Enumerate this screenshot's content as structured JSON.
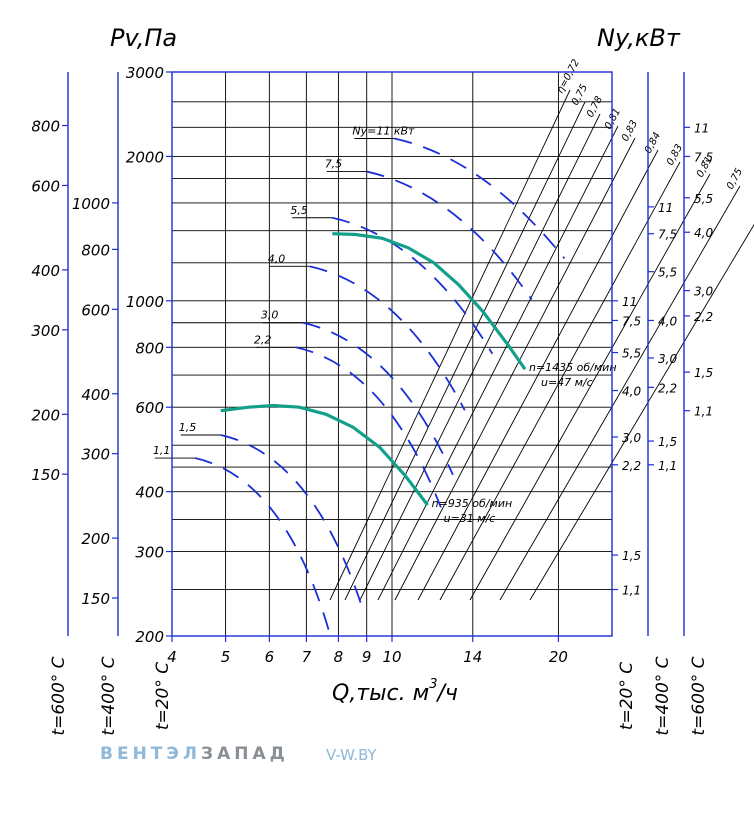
{
  "chart_data": {
    "type": "line",
    "ylabel": "Pv,Па",
    "y2label": "Ny,кВт",
    "xlabel": "Q,тыс. м",
    "xlabel_sup": "3",
    "xlabel_tail": "/ч",
    "xlim": [
      4,
      25
    ],
    "ylim": [
      200,
      3000
    ],
    "x_scale": "log",
    "y_scale": "log",
    "x_ticks": [
      4,
      5,
      6,
      7,
      8,
      9,
      10,
      14,
      20
    ],
    "y_ticks": [
      200,
      300,
      400,
      600,
      800,
      1000,
      2000,
      3000
    ],
    "outer_axes": [
      {
        "temp": "t=600° C",
        "ticks": [
          150,
          200,
          300,
          400,
          600,
          800
        ]
      },
      {
        "temp": "t=400° C",
        "ticks": [
          150,
          200,
          300,
          400,
          600,
          800,
          1000
        ]
      },
      {
        "temp": "t=20° C",
        "ticks": [
          200,
          300,
          400,
          600,
          800,
          1000,
          2000,
          3000
        ]
      }
    ],
    "power_axes": [
      {
        "temp": "t=20° C",
        "labels": [
          {
            "label": "11",
            "pv": 1000
          },
          {
            "label": "7,5",
            "pv": 910
          },
          {
            "label": "5,5",
            "pv": 780
          },
          {
            "label": "4,0",
            "pv": 650
          },
          {
            "label": "3,0",
            "pv": 520
          },
          {
            "label": "2,2",
            "pv": 455
          },
          {
            "label": "1,5",
            "pv": 295
          },
          {
            "label": "1,1",
            "pv": 250
          }
        ]
      },
      {
        "temp": "t=400° C",
        "labels": [
          {
            "label": "11",
            "pv": 1570
          },
          {
            "label": "7,5",
            "pv": 1380
          },
          {
            "label": "5,5",
            "pv": 1150
          },
          {
            "label": "4,0",
            "pv": 910
          },
          {
            "label": "3,0",
            "pv": 760
          },
          {
            "label": "2,2",
            "pv": 660
          },
          {
            "label": "1,5",
            "pv": 510
          },
          {
            "label": "1,1",
            "pv": 455
          }
        ]
      },
      {
        "temp": "t=600° C",
        "labels": [
          {
            "label": "11",
            "pv": 2300
          },
          {
            "label": "7,5",
            "pv": 2000
          },
          {
            "label": "5,5",
            "pv": 1640
          },
          {
            "label": "4,0",
            "pv": 1390
          },
          {
            "label": "3,0",
            "pv": 1050
          },
          {
            "label": "2,2",
            "pv": 930
          },
          {
            "label": "1,5",
            "pv": 710
          },
          {
            "label": "1,1",
            "pv": 590
          }
        ]
      }
    ],
    "efficiency_labels": [
      "η=0,72",
      "0,75",
      "0,78",
      "0,81",
      "0,83",
      "0,84",
      "0,83",
      "0,81",
      "0,75",
      "0,72"
    ],
    "power_curves": [
      {
        "label": "Ny=11 кВт",
        "start": [
          10.1,
          2180
        ]
      },
      {
        "label": "7,5",
        "start": [
          9.0,
          1860
        ]
      },
      {
        "label": "5,5",
        "start": [
          7.8,
          1490
        ]
      },
      {
        "label": "4,0",
        "start": [
          7.1,
          1180
        ]
      },
      {
        "label": "3,0",
        "start": [
          6.9,
          900
        ]
      },
      {
        "label": "2,2",
        "start": [
          6.7,
          800
        ]
      },
      {
        "label": "1,5",
        "start": [
          4.9,
          525
        ]
      },
      {
        "label": "1,1",
        "start": [
          4.4,
          470
        ]
      }
    ],
    "series": [
      {
        "name": "n=1435 об/мин",
        "note": "u=47 м/с",
        "x": [
          7.8,
          8.6,
          9.6,
          10.7,
          11.9,
          13.2,
          14.6,
          16.2,
          17.4
        ],
        "y": [
          1380,
          1375,
          1350,
          1290,
          1200,
          1080,
          950,
          810,
          720
        ]
      },
      {
        "name": "n=935 об/мин",
        "note": "u=31 м/с",
        "x": [
          4.9,
          5.5,
          6.1,
          6.8,
          7.6,
          8.5,
          9.5,
          10.6,
          11.6
        ],
        "y": [
          590,
          600,
          605,
          600,
          580,
          545,
          495,
          430,
          375
        ]
      }
    ]
  },
  "brand": {
    "part1": "ВЕНТЭЛ",
    "part2": "ЗАПАД",
    "site": "V-W.BY"
  }
}
